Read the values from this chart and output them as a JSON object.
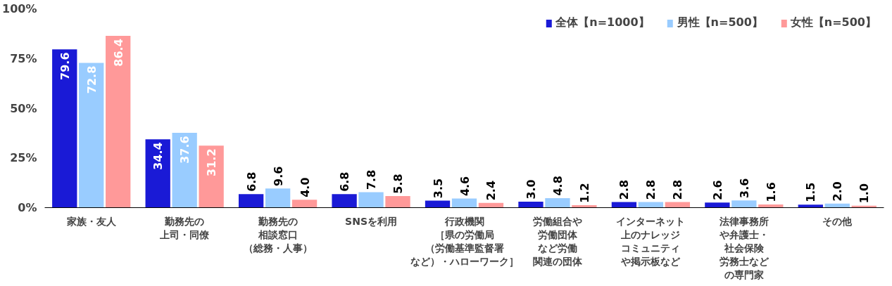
{
  "chart_data": {
    "type": "bar",
    "categories": [
      "家族・友人",
      "勤務先の上司・同僚",
      "勤務先の相談窓口（総務・人事）",
      "SNSを利用",
      "行政機関［県の労働局（労働基準監督署など）・ハローワーク］",
      "労働組合や労働団体など労働関連の団体",
      "インターネット上のナレッジコミュニティや掲示板など",
      "法律事務所や弁護士・社会保険労務士などの専門家",
      "その他"
    ],
    "series": [
      {
        "name": "全体【n=1000】",
        "color": "#1a1ad6",
        "values": [
          79.6,
          34.4,
          6.8,
          6.8,
          3.5,
          3.0,
          2.8,
          2.6,
          1.5
        ],
        "value_labels": [
          "79.6",
          "34.4",
          "6.8",
          "6.8",
          "3.5",
          "3.0",
          "2.8",
          "2.6",
          "1.5"
        ]
      },
      {
        "name": "男性【n=500】",
        "color": "#99ccff",
        "values": [
          72.8,
          37.6,
          9.6,
          7.8,
          4.6,
          4.8,
          2.8,
          3.6,
          2.0
        ],
        "value_labels": [
          "72.8",
          "37.6",
          "9.6",
          "7.8",
          "4.6",
          "4.8",
          "2.8",
          "3.6",
          "2.0"
        ]
      },
      {
        "name": "女性【n=500】",
        "color": "#ff9999",
        "values": [
          86.4,
          31.2,
          4.0,
          5.8,
          2.4,
          1.2,
          2.8,
          1.6,
          1.0
        ],
        "value_labels": [
          "86.4",
          "31.2",
          "4.0",
          "5.8",
          "2.4",
          "1.2",
          "2.8",
          "1.6",
          "1.0"
        ]
      }
    ],
    "ylim": [
      0,
      100
    ],
    "yticks": [
      {
        "value": 0,
        "label": "0%"
      },
      {
        "value": 25,
        "label": "25%"
      },
      {
        "value": 50,
        "label": "50%"
      },
      {
        "value": 75,
        "label": "75%"
      },
      {
        "value": 100,
        "label": "100%"
      }
    ],
    "grid": false,
    "legend": "top right"
  }
}
